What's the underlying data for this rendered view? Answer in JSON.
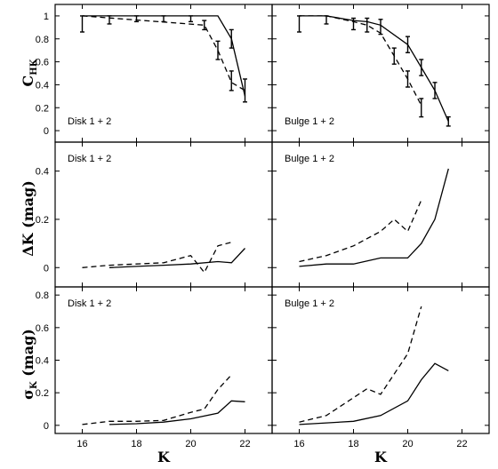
{
  "figure": {
    "ylabels": {
      "row0": {
        "main": "C",
        "sub": "HK"
      },
      "row1": {
        "text": "ΔK (mag)"
      },
      "row2": {
        "main": "σ",
        "sub": "K",
        "tail": " (mag)"
      }
    },
    "xlabels": [
      "K",
      "K"
    ]
  },
  "chart_data": [
    {
      "type": "line",
      "panel": "Disk 1 + 2 (top)",
      "label": "Disk 1 + 2",
      "xlim": [
        15,
        23
      ],
      "ylim": [
        -0.1,
        1.1
      ],
      "xticks": [
        16,
        18,
        20,
        22
      ],
      "yticks": [
        0,
        0.2,
        0.4,
        0.6,
        0.8,
        1
      ],
      "ytick_labels": [
        "0",
        "0.2",
        "0.4",
        "0.6",
        "0.8",
        "1"
      ],
      "series": [
        {
          "style": "solid",
          "x": [
            16,
            21,
            21.5,
            22
          ],
          "y": [
            1.0,
            1.0,
            0.8,
            0.3
          ],
          "errors": [
            {
              "x": 21.5,
              "y": 0.8,
              "lo": 0.72,
              "hi": 0.88
            },
            {
              "x": 22,
              "y": 0.35,
              "lo": 0.25,
              "hi": 0.45
            }
          ]
        },
        {
          "style": "dashed",
          "x": [
            16,
            20.5,
            21,
            21.5,
            22
          ],
          "y": [
            1.0,
            0.92,
            0.7,
            0.42,
            0.35
          ],
          "errors": [
            {
              "x": 16,
              "y": 0.93,
              "lo": 0.86,
              "hi": 1.0
            },
            {
              "x": 17,
              "y": 0.97,
              "lo": 0.93,
              "hi": 1.0
            },
            {
              "x": 18,
              "y": 0.98,
              "lo": 0.95,
              "hi": 1.0
            },
            {
              "x": 19,
              "y": 0.98,
              "lo": 0.95,
              "hi": 1.0
            },
            {
              "x": 20,
              "y": 0.98,
              "lo": 0.95,
              "hi": 1.0
            },
            {
              "x": 20.5,
              "y": 0.92,
              "lo": 0.88,
              "hi": 0.96
            },
            {
              "x": 21,
              "y": 0.7,
              "lo": 0.62,
              "hi": 0.78
            },
            {
              "x": 21.5,
              "y": 0.43,
              "lo": 0.35,
              "hi": 0.52
            }
          ]
        }
      ]
    },
    {
      "type": "line",
      "panel": "Bulge 1 + 2 (top)",
      "label": "Bulge 1 + 2",
      "xlim": [
        15,
        23
      ],
      "ylim": [
        -0.1,
        1.1
      ],
      "xticks": [
        16,
        18,
        20,
        22
      ],
      "yticks": [
        0,
        0.2,
        0.4,
        0.6,
        0.8,
        1
      ],
      "series": [
        {
          "style": "solid",
          "x": [
            16,
            17,
            18,
            18.5,
            19,
            20,
            20.5,
            21,
            21.5
          ],
          "y": [
            1.0,
            1.0,
            0.96,
            0.95,
            0.92,
            0.75,
            0.55,
            0.35,
            0.08
          ],
          "errors": [
            {
              "x": 19,
              "y": 0.9,
              "lo": 0.84,
              "hi": 0.97
            },
            {
              "x": 20,
              "y": 0.75,
              "lo": 0.68,
              "hi": 0.82
            },
            {
              "x": 20.5,
              "y": 0.55,
              "lo": 0.48,
              "hi": 0.62
            },
            {
              "x": 21,
              "y": 0.35,
              "lo": 0.28,
              "hi": 0.42
            },
            {
              "x": 21.5,
              "y": 0.08,
              "lo": 0.04,
              "hi": 0.12
            }
          ]
        },
        {
          "style": "dashed",
          "x": [
            16,
            17,
            18,
            18.5,
            19,
            19.5,
            20,
            20.5
          ],
          "y": [
            1.0,
            1.0,
            0.95,
            0.92,
            0.85,
            0.65,
            0.45,
            0.22
          ],
          "errors": [
            {
              "x": 16,
              "y": 0.93,
              "lo": 0.86,
              "hi": 1.0
            },
            {
              "x": 17,
              "y": 0.97,
              "lo": 0.93,
              "hi": 1.0
            },
            {
              "x": 18,
              "y": 0.93,
              "lo": 0.88,
              "hi": 0.98
            },
            {
              "x": 18.5,
              "y": 0.92,
              "lo": 0.86,
              "hi": 0.98
            },
            {
              "x": 19.5,
              "y": 0.65,
              "lo": 0.58,
              "hi": 0.72
            },
            {
              "x": 20,
              "y": 0.45,
              "lo": 0.38,
              "hi": 0.52
            },
            {
              "x": 20.5,
              "y": 0.2,
              "lo": 0.12,
              "hi": 0.28
            }
          ]
        }
      ]
    },
    {
      "type": "line",
      "panel": "Disk 1 + 2 (middle)",
      "label": "Disk 1 + 2",
      "xlim": [
        15,
        23
      ],
      "ylim": [
        -0.08,
        0.52
      ],
      "xticks": [
        16,
        18,
        20,
        22
      ],
      "yticks": [
        0,
        0.2,
        0.4
      ],
      "ytick_labels": [
        "0",
        "0.2",
        "0.4"
      ],
      "series": [
        {
          "style": "solid",
          "x": [
            17,
            18,
            19,
            20,
            21,
            21.5,
            22
          ],
          "y": [
            0.0,
            0.005,
            0.01,
            0.015,
            0.025,
            0.02,
            0.08
          ]
        },
        {
          "style": "dashed",
          "x": [
            16,
            17,
            18,
            19,
            20,
            20.5,
            21,
            21.5
          ],
          "y": [
            0.0,
            0.01,
            0.015,
            0.02,
            0.05,
            -0.02,
            0.09,
            0.105
          ]
        }
      ]
    },
    {
      "type": "line",
      "panel": "Bulge 1 + 2 (middle)",
      "label": "Bulge 1 + 2",
      "xlim": [
        15,
        23
      ],
      "ylim": [
        -0.08,
        0.52
      ],
      "xticks": [
        16,
        18,
        20,
        22
      ],
      "yticks": [
        0,
        0.2,
        0.4
      ],
      "series": [
        {
          "style": "solid",
          "x": [
            16,
            17,
            18,
            19,
            20,
            20.5,
            21,
            21.5
          ],
          "y": [
            0.005,
            0.015,
            0.015,
            0.04,
            0.04,
            0.1,
            0.2,
            0.41
          ]
        },
        {
          "style": "dashed",
          "x": [
            16,
            17,
            18,
            19,
            19.5,
            20,
            20.5
          ],
          "y": [
            0.025,
            0.05,
            0.09,
            0.15,
            0.2,
            0.15,
            0.28
          ]
        }
      ]
    },
    {
      "type": "line",
      "panel": "Disk 1 + 2 (bottom)",
      "label": "Disk 1 + 2",
      "xlim": [
        15,
        23
      ],
      "ylim": [
        -0.05,
        0.85
      ],
      "xticks": [
        16,
        18,
        20,
        22
      ],
      "yticks": [
        0,
        0.2,
        0.4,
        0.6,
        0.8
      ],
      "ytick_labels": [
        "0",
        "0.2",
        "0.4",
        "0.6",
        "0.8"
      ],
      "xtick_labels": [
        "16",
        "18",
        "20",
        "22"
      ],
      "series": [
        {
          "style": "solid",
          "x": [
            17,
            18,
            19,
            20,
            21,
            21.5,
            22
          ],
          "y": [
            0.005,
            0.01,
            0.02,
            0.04,
            0.075,
            0.15,
            0.145
          ]
        },
        {
          "style": "dashed",
          "x": [
            16,
            17,
            18,
            19,
            20,
            20.5,
            21,
            21.5
          ],
          "y": [
            0.005,
            0.025,
            0.025,
            0.03,
            0.08,
            0.1,
            0.22,
            0.31
          ]
        }
      ]
    },
    {
      "type": "line",
      "panel": "Bulge 1 + 2 (bottom)",
      "label": "Bulge 1 + 2",
      "xlim": [
        15,
        23
      ],
      "ylim": [
        -0.05,
        0.85
      ],
      "xticks": [
        16,
        18,
        20,
        22
      ],
      "yticks": [
        0,
        0.2,
        0.4,
        0.6,
        0.8
      ],
      "xtick_labels": [
        "16",
        "18",
        "20",
        "22"
      ],
      "series": [
        {
          "style": "solid",
          "x": [
            16,
            17,
            18,
            19,
            20,
            20.5,
            21,
            21.5
          ],
          "y": [
            0.005,
            0.015,
            0.025,
            0.06,
            0.15,
            0.28,
            0.38,
            0.335
          ]
        },
        {
          "style": "dashed",
          "x": [
            16,
            17,
            18,
            18.5,
            19,
            20,
            20.5
          ],
          "y": [
            0.02,
            0.06,
            0.17,
            0.225,
            0.19,
            0.44,
            0.73
          ]
        }
      ]
    }
  ]
}
